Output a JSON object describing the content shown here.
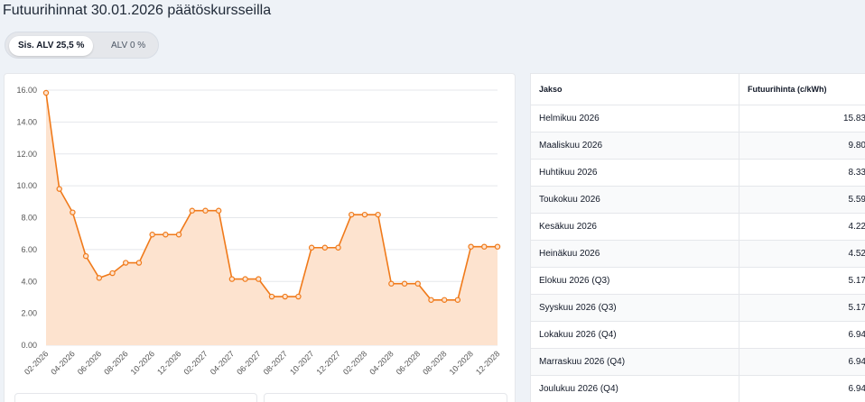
{
  "title": "Futuurihinnat 30.01.2026 päätöskursseilla",
  "vat_toggle": {
    "with_vat_label": "Sis. ALV 25,5 %",
    "without_vat_label": "ALV 0 %",
    "selected": "with_vat"
  },
  "colors": {
    "line": "#f07a1a",
    "area": "#fde3cf",
    "grid": "#e5e7eb",
    "axis_text": "#555555"
  },
  "chart_data": {
    "type": "area",
    "title": "",
    "xlabel": "",
    "ylabel": "",
    "ylim": [
      0,
      16
    ],
    "yticks": [
      "0.00",
      "2.00",
      "4.00",
      "6.00",
      "8.00",
      "10.00",
      "12.00",
      "14.00",
      "16.00"
    ],
    "x": [
      "02-2026",
      "03-2026",
      "04-2026",
      "05-2026",
      "06-2026",
      "07-2026",
      "08-2026",
      "09-2026",
      "10-2026",
      "11-2026",
      "12-2026",
      "01-2027",
      "02-2027",
      "03-2027",
      "04-2027",
      "05-2027",
      "06-2027",
      "07-2027",
      "08-2027",
      "09-2027",
      "10-2027",
      "11-2027",
      "12-2027",
      "01-2028",
      "02-2028",
      "03-2028",
      "04-2028",
      "05-2028",
      "06-2028",
      "07-2028",
      "08-2028",
      "09-2028",
      "10-2028",
      "11-2028",
      "12-2028"
    ],
    "xticks": [
      "02-2026",
      "04-2026",
      "06-2026",
      "08-2026",
      "10-2026",
      "12-2026",
      "02-2027",
      "04-2027",
      "06-2027",
      "08-2027",
      "10-2027",
      "12-2027",
      "02-2028",
      "04-2028",
      "06-2028",
      "08-2028",
      "10-2028",
      "12-2028"
    ],
    "values": [
      15.83,
      9.8,
      8.33,
      5.59,
      4.22,
      4.52,
      5.17,
      5.17,
      6.94,
      6.94,
      6.94,
      8.44,
      8.44,
      8.44,
      4.15,
      4.15,
      4.15,
      3.05,
      3.05,
      3.05,
      6.12,
      6.12,
      6.12,
      8.19,
      8.19,
      8.19,
      3.86,
      3.86,
      3.86,
      2.84,
      2.84,
      2.84,
      6.18,
      6.18,
      6.18
    ]
  },
  "table": {
    "headers": [
      "Jakso",
      "Futuurihinta (c/kWh)"
    ],
    "rows": [
      {
        "period": "Helmikuu 2026",
        "price": "15.83"
      },
      {
        "period": "Maaliskuu 2026",
        "price": "9.80"
      },
      {
        "period": "Huhtikuu 2026",
        "price": "8.33"
      },
      {
        "period": "Toukokuu 2026",
        "price": "5.59"
      },
      {
        "period": "Kesäkuu 2026",
        "price": "4.22"
      },
      {
        "period": "Heinäkuu 2026",
        "price": "4.52"
      },
      {
        "period": "Elokuu 2026 (Q3)",
        "price": "5.17"
      },
      {
        "period": "Syyskuu 2026 (Q3)",
        "price": "5.17"
      },
      {
        "period": "Lokakuu 2026 (Q4)",
        "price": "6.94"
      },
      {
        "period": "Marraskuu 2026 (Q4)",
        "price": "6.94"
      },
      {
        "period": "Joulukuu 2026 (Q4)",
        "price": "6.94"
      }
    ]
  }
}
